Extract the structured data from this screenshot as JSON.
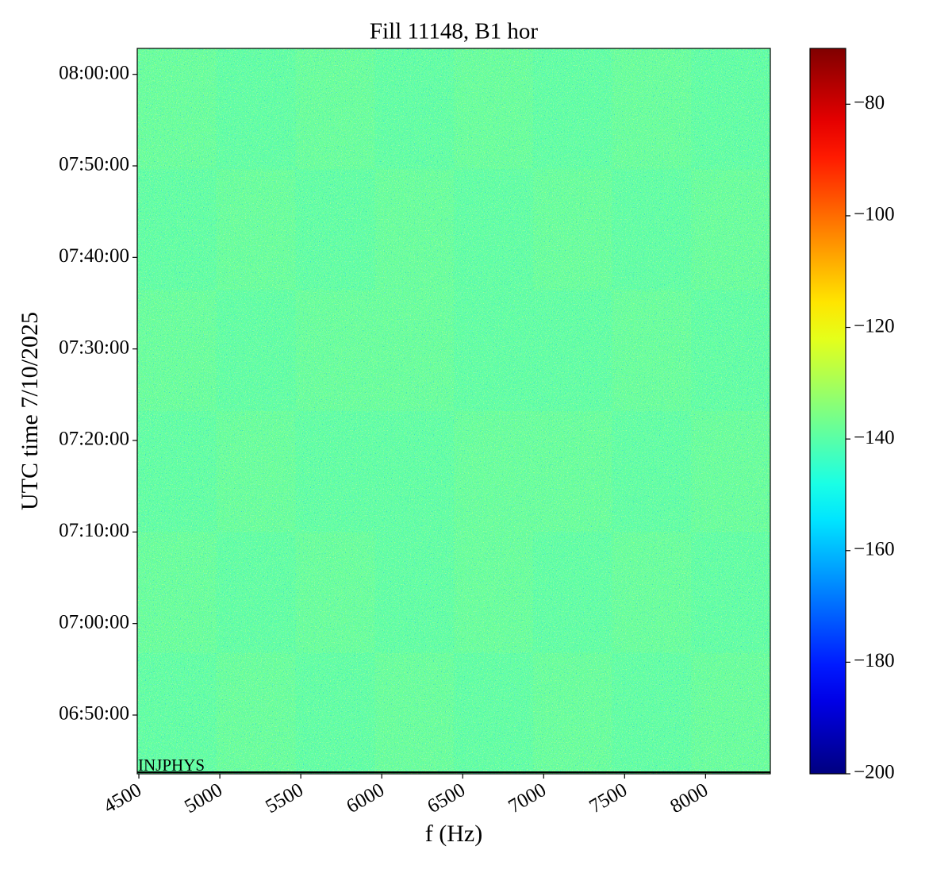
{
  "chart_data": {
    "type": "heatmap",
    "title": "Fill 11148, B1 hor",
    "xlabel": "f (Hz)",
    "ylabel": "UTC time 7/10/2025",
    "annotation": "INJPHYS",
    "xlim": [
      4490,
      8400
    ],
    "xticks": [
      4500,
      5000,
      5500,
      6000,
      6500,
      7000,
      7500,
      8000
    ],
    "ylim": [
      "06:43:35",
      "08:02:50"
    ],
    "yticks": [
      "06:50:00",
      "07:00:00",
      "07:10:00",
      "07:20:00",
      "07:30:00",
      "07:40:00",
      "07:50:00",
      "08:00:00"
    ],
    "colormap": "jet",
    "clim": [
      -200,
      -70
    ],
    "cticks": [
      {
        "value": -80,
        "label": "−80"
      },
      {
        "value": -100,
        "label": "−100"
      },
      {
        "value": -120,
        "label": "−120"
      },
      {
        "value": -140,
        "label": "−140"
      },
      {
        "value": -160,
        "label": "−160"
      },
      {
        "value": -180,
        "label": "−180"
      },
      {
        "value": -200,
        "label": "−200"
      }
    ],
    "z": [
      [
        -138,
        -139,
        -138,
        -139,
        -138,
        -139,
        -138,
        -139
      ],
      [
        -139,
        -138,
        -139,
        -138,
        -139,
        -138,
        -139,
        -138
      ],
      [
        -138,
        -139,
        -138,
        -138,
        -139,
        -139,
        -138,
        -139
      ],
      [
        -139,
        -138,
        -139,
        -139,
        -138,
        -138,
        -139,
        -138
      ],
      [
        -138,
        -139,
        -138,
        -139,
        -138,
        -139,
        -138,
        -139
      ],
      [
        -139,
        -138,
        -139,
        -138,
        -139,
        -138,
        -139,
        -138
      ]
    ]
  }
}
